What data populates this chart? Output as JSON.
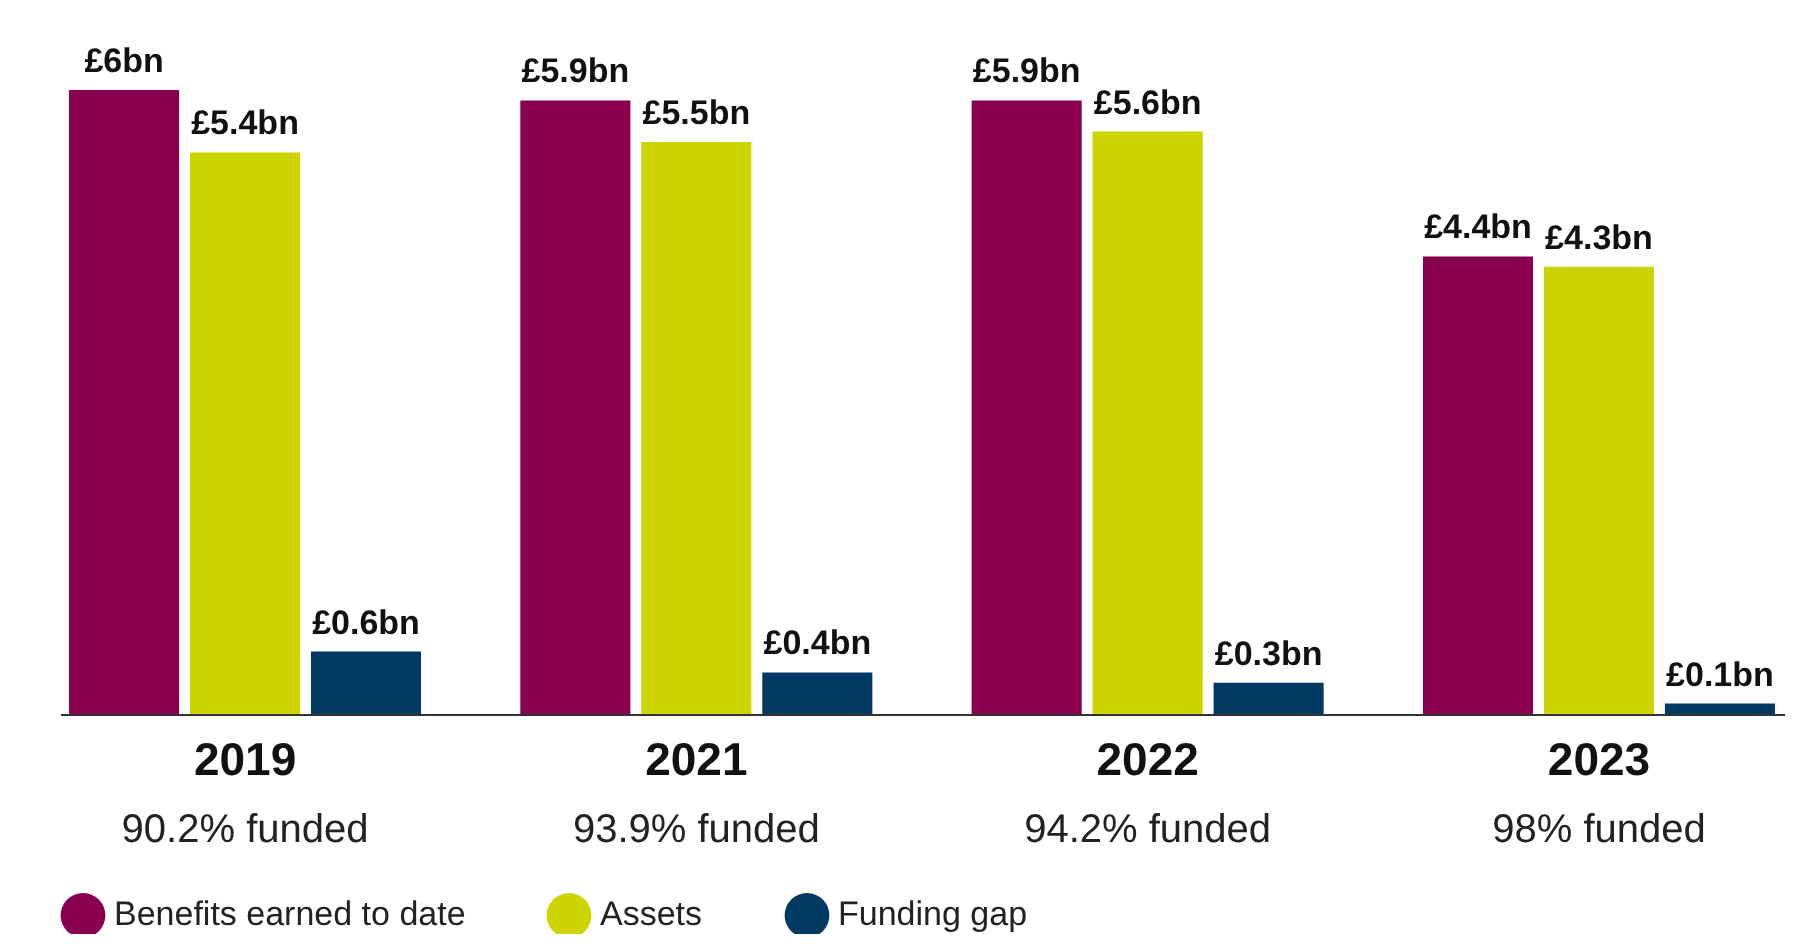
{
  "chart_data": {
    "type": "bar",
    "categories": [
      "2019",
      "2021",
      "2022",
      "2023"
    ],
    "series": [
      {
        "name": "Benefits earned to date",
        "color": "#8a004f",
        "values": [
          6,
          5.9,
          5.9,
          4.4
        ],
        "value_labels": [
          "£6bn",
          "£5.9bn",
          "£5.9bn",
          "£4.4bn"
        ]
      },
      {
        "name": "Assets",
        "color": "#cdd500",
        "values": [
          5.4,
          5.5,
          5.6,
          4.3
        ],
        "value_labels": [
          "£5.4bn",
          "£5.5bn",
          "£5.6bn",
          "£4.3bn"
        ]
      },
      {
        "name": "Funding gap",
        "color": "#003a63",
        "values": [
          0.6,
          0.4,
          0.3,
          0.1
        ],
        "value_labels": [
          "£0.6bn",
          "£0.4bn",
          "£0.3bn",
          "£0.1bn"
        ]
      }
    ],
    "annotations": [
      "90.2% funded",
      "93.9% funded",
      "94.2% funded",
      "98% funded"
    ],
    "legend": "bottom"
  }
}
